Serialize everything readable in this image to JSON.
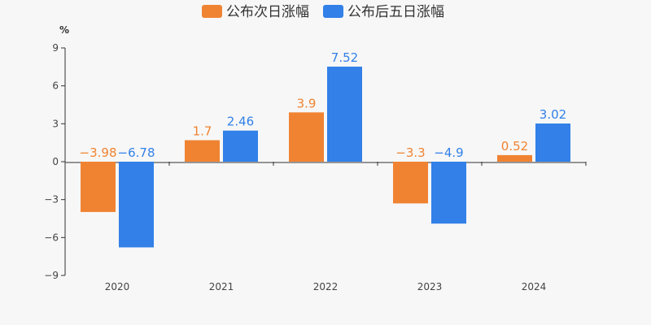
{
  "chart_data": {
    "type": "bar",
    "categories": [
      "2020",
      "2021",
      "2022",
      "2023",
      "2024"
    ],
    "series": [
      {
        "name": "公布次日涨幅",
        "color": "#f08332",
        "values": [
          -3.98,
          1.7,
          3.9,
          -3.3,
          0.52
        ],
        "labels": [
          "−3.98",
          "1.7",
          "3.9",
          "−3.3",
          "0.52"
        ]
      },
      {
        "name": "公布后五日涨幅",
        "color": "#3280e8",
        "values": [
          -6.78,
          2.46,
          7.52,
          -4.9,
          3.02
        ],
        "labels": [
          "−6.78",
          "2.46",
          "7.52",
          "−4.9",
          "3.02"
        ]
      }
    ],
    "ylabel": "%",
    "ylim": [
      -9,
      9
    ],
    "yticks": [
      9,
      6,
      3,
      0,
      -3,
      -6,
      -9
    ],
    "ytick_labels": [
      "9",
      "6",
      "3",
      "0",
      "−3",
      "−6",
      "−9"
    ],
    "grid": false,
    "legend_position": "top-center"
  }
}
